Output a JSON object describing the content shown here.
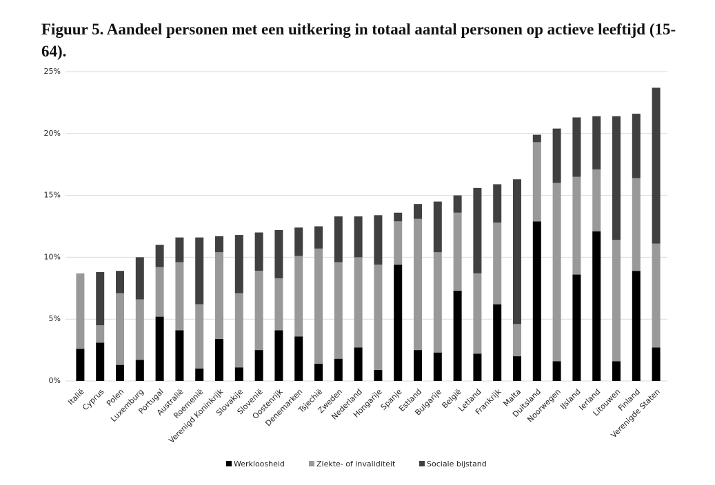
{
  "chart_data": {
    "type": "stacked-bar",
    "title": "Figuur 5. Aandeel personen met een uitkering in totaal aantal personen op actieve leeftijd (15-64).",
    "categories": [
      "Italië",
      "Cyprus",
      "Polen",
      "Luxemburg",
      "Portugal",
      "Australië",
      "Roemenië",
      "Verenigd Koninkrijk",
      "Slovakije",
      "Slovenië",
      "Oostenrijk",
      "Denemarken",
      "Tsjechië",
      "Zweden",
      "Nederland",
      "Hongarije",
      "Spanje",
      "Estland",
      "Bulgarije",
      "België",
      "Letland",
      "Frankrijk",
      "Malta",
      "Duitsland",
      "Noorwegen",
      "IJsland",
      "Ierland",
      "Litouwen",
      "Finland",
      "Verenigde Staten"
    ],
    "series": [
      {
        "name": "Werkloosheid",
        "color": "#000000",
        "values": [
          2.6,
          3.1,
          1.3,
          1.7,
          5.2,
          4.1,
          1.0,
          3.4,
          1.1,
          2.5,
          4.1,
          3.6,
          1.4,
          1.8,
          2.7,
          0.9,
          9.4,
          2.5,
          2.3,
          7.3,
          2.2,
          6.2,
          2.0,
          12.9,
          1.6,
          8.6,
          12.1,
          1.6,
          8.9,
          2.7
        ]
      },
      {
        "name": "Ziekte- of invaliditeit",
        "color": "#999999",
        "values": [
          6.1,
          1.4,
          5.8,
          4.9,
          4.0,
          5.5,
          5.2,
          7.0,
          6.0,
          6.4,
          4.2,
          6.5,
          9.3,
          7.8,
          7.3,
          8.5,
          3.5,
          10.6,
          8.1,
          6.3,
          6.5,
          6.6,
          2.6,
          6.4,
          14.4,
          7.9,
          5.0,
          9.8,
          7.5,
          8.4
        ]
      },
      {
        "name": "Sociale bijstand",
        "color": "#404040",
        "values": [
          0,
          4.3,
          1.8,
          3.4,
          1.8,
          2.0,
          5.4,
          1.3,
          4.7,
          3.1,
          3.9,
          2.3,
          1.8,
          3.7,
          3.3,
          4.0,
          0.7,
          1.2,
          4.1,
          1.4,
          6.9,
          3.1,
          11.7,
          0.6,
          4.4,
          4.8,
          4.3,
          10.0,
          5.2,
          12.6
        ]
      }
    ],
    "ylim": [
      0,
      25
    ],
    "yticks": [
      {
        "value": 0,
        "label": "0%"
      },
      {
        "value": 5,
        "label": "5%"
      },
      {
        "value": 10,
        "label": "10%"
      },
      {
        "value": 15,
        "label": "15%"
      },
      {
        "value": 20,
        "label": "20%"
      },
      {
        "value": 25,
        "label": "25%"
      }
    ],
    "grid": true,
    "legend": "bottom"
  }
}
